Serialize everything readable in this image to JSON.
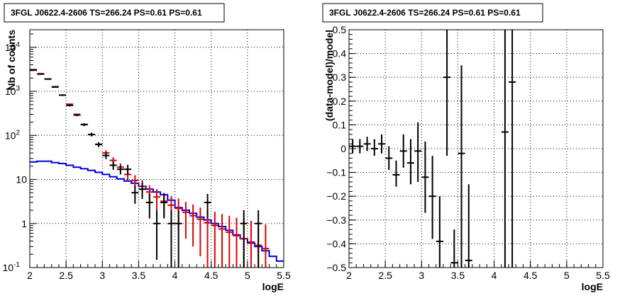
{
  "chart_data": [
    {
      "type": "scatter",
      "title": "3FGL J0622.4-2606 TS=266.24 PS=0.61 PS=0.61",
      "xlabel": "logE",
      "ylabel": "Nb of counts",
      "yscale": "log",
      "xlim": [
        2,
        5.5
      ],
      "ylim": [
        0.1,
        25000
      ],
      "grid": true,
      "x_ticks": [
        "2",
        "2.5",
        "3",
        "3.5",
        "4",
        "4.5",
        "5",
        "5.5"
      ],
      "y_ticks": [
        {
          "value": 0.1,
          "base": "10",
          "exp": "-1"
        },
        {
          "value": 1,
          "base": "1",
          "exp": ""
        },
        {
          "value": 10,
          "base": "10",
          "exp": ""
        },
        {
          "value": 100,
          "base": "10",
          "exp": "2"
        },
        {
          "value": 1000,
          "base": "10",
          "exp": "3"
        },
        {
          "value": 10000,
          "base": "10",
          "exp": "4"
        }
      ],
      "series": [
        {
          "color": "#000000",
          "style": "errorbar",
          "points": [
            {
              "x": 2.05,
              "y": 3100,
              "lo": 3000,
              "hi": 3200
            },
            {
              "x": 2.15,
              "y": 2500,
              "lo": 2420,
              "hi": 2580
            },
            {
              "x": 2.25,
              "y": 1900,
              "lo": 1840,
              "hi": 1960
            },
            {
              "x": 2.35,
              "y": 1250,
              "lo": 1200,
              "hi": 1300
            },
            {
              "x": 2.45,
              "y": 820,
              "lo": 790,
              "hi": 850
            },
            {
              "x": 2.55,
              "y": 480,
              "lo": 455,
              "hi": 505
            },
            {
              "x": 2.65,
              "y": 290,
              "lo": 272,
              "hi": 308
            },
            {
              "x": 2.75,
              "y": 175,
              "lo": 162,
              "hi": 188
            },
            {
              "x": 2.85,
              "y": 105,
              "lo": 95,
              "hi": 115
            },
            {
              "x": 2.95,
              "y": 62,
              "lo": 54,
              "hi": 70
            },
            {
              "x": 3.05,
              "y": 35,
              "lo": 29,
              "hi": 41
            },
            {
              "x": 3.15,
              "y": 21,
              "lo": 16.5,
              "hi": 25.5
            },
            {
              "x": 3.25,
              "y": 17,
              "lo": 13,
              "hi": 21
            },
            {
              "x": 3.35,
              "y": 17,
              "lo": 13,
              "hi": 21.5
            },
            {
              "x": 3.45,
              "y": 5,
              "lo": 2.8,
              "hi": 7.2
            },
            {
              "x": 3.55,
              "y": 6,
              "lo": 3.6,
              "hi": 8.5
            },
            {
              "x": 3.65,
              "y": 3,
              "lo": 1.3,
              "hi": 4.7
            },
            {
              "x": 3.75,
              "y": 1,
              "lo": 0.15,
              "hi": 2.0
            },
            {
              "x": 3.85,
              "y": 3,
              "lo": 1.3,
              "hi": 4.7
            },
            {
              "x": 3.95,
              "y": 1,
              "lo": 0.1,
              "hi": 2.0
            },
            {
              "x": 4.05,
              "y": 1,
              "lo": 0.1,
              "hi": 2.0
            },
            {
              "x": 4.45,
              "y": 3,
              "lo": 1.3,
              "hi": 4.7
            },
            {
              "x": 4.95,
              "y": 1,
              "lo": 0.1,
              "hi": 2.0
            },
            {
              "x": 5.15,
              "y": 1,
              "lo": 0.1,
              "hi": 2.0
            }
          ]
        },
        {
          "color": "#dd0000",
          "style": "errorbar",
          "points": [
            {
              "x": 2.05,
              "y": 3000
            },
            {
              "x": 2.15,
              "y": 2450
            },
            {
              "x": 2.25,
              "y": 1900
            },
            {
              "x": 2.35,
              "y": 1280
            },
            {
              "x": 2.45,
              "y": 820
            },
            {
              "x": 2.55,
              "y": 510
            },
            {
              "x": 2.65,
              "y": 300
            },
            {
              "x": 2.75,
              "y": 178
            },
            {
              "x": 2.85,
              "y": 105
            },
            {
              "x": 2.95,
              "y": 63
            },
            {
              "x": 3.05,
              "y": 40,
              "lo": 34,
              "hi": 46
            },
            {
              "x": 3.15,
              "y": 27,
              "lo": 22,
              "hi": 32
            },
            {
              "x": 3.25,
              "y": 19,
              "lo": 15,
              "hi": 23
            },
            {
              "x": 3.35,
              "y": 13,
              "lo": 9.5,
              "hi": 16.5
            },
            {
              "x": 3.45,
              "y": 9.5,
              "lo": 6.5,
              "hi": 12.5
            },
            {
              "x": 3.55,
              "y": 7,
              "lo": 4.4,
              "hi": 9.6
            },
            {
              "x": 3.65,
              "y": 5.2,
              "lo": 3.0,
              "hi": 7.4
            },
            {
              "x": 3.75,
              "y": 4,
              "lo": 2.0,
              "hi": 6.0
            },
            {
              "x": 3.85,
              "y": 3.2,
              "lo": 1.4,
              "hi": 5.0
            },
            {
              "x": 3.95,
              "y": 2.6,
              "lo": 1.0,
              "hi": 4.2
            },
            {
              "x": 4.05,
              "y": 2.2,
              "lo": 0.7,
              "hi": 3.7
            },
            {
              "x": 4.15,
              "y": 1.8,
              "lo": 0.45,
              "hi": 3.1
            },
            {
              "x": 4.25,
              "y": 1.5,
              "lo": 0.3,
              "hi": 2.7
            },
            {
              "x": 4.35,
              "y": 1.25,
              "lo": 0.18,
              "hi": 2.3
            },
            {
              "x": 4.45,
              "y": 1.05,
              "lo": 0.1,
              "hi": 2.05
            },
            {
              "x": 4.55,
              "y": 0.9,
              "lo": 0.1,
              "hi": 1.85
            },
            {
              "x": 4.65,
              "y": 0.75,
              "lo": 0.1,
              "hi": 1.65
            },
            {
              "x": 4.75,
              "y": 0.63,
              "lo": 0.1,
              "hi": 1.5
            },
            {
              "x": 4.85,
              "y": 0.53,
              "lo": 0.1,
              "hi": 1.35
            },
            {
              "x": 4.95,
              "y": 0.45,
              "lo": 0.1,
              "hi": 1.25
            },
            {
              "x": 5.05,
              "y": 0.38,
              "lo": 0.1,
              "hi": 1.15
            },
            {
              "x": 5.15,
              "y": 0.32,
              "lo": 0.1,
              "hi": 1.05
            },
            {
              "x": 5.25,
              "y": 0.27,
              "lo": 0.1,
              "hi": 0.95
            }
          ]
        },
        {
          "color": "#0000dd",
          "style": "step",
          "edges": [
            2.0,
            2.1,
            2.2,
            2.3,
            2.4,
            2.5,
            2.6,
            2.7,
            2.8,
            2.9,
            3.0,
            3.1,
            3.2,
            3.3,
            3.4,
            3.5,
            3.6,
            3.7,
            3.8,
            3.9,
            4.0,
            4.1,
            4.2,
            4.3,
            4.4,
            4.5,
            4.6,
            4.7,
            4.8,
            4.9,
            5.0,
            5.1,
            5.2,
            5.3,
            5.4,
            5.5
          ],
          "values": [
            25,
            26,
            26,
            24,
            23,
            21,
            19,
            17.5,
            16,
            14.5,
            13,
            11.5,
            10.3,
            9.2,
            8.2,
            7,
            6,
            5.2,
            4.5,
            3.4,
            2.3,
            2.0,
            1.7,
            1.4,
            1.2,
            1.0,
            0.85,
            0.7,
            0.55,
            0.45,
            0.36,
            0.3,
            0.24,
            0.18,
            0.14
          ]
        }
      ]
    },
    {
      "type": "scatter",
      "title": "3FGL J0622.4-2606 TS=266.24 PS=0.61 PS=0.61",
      "xlabel": "logE",
      "ylabel": "(data-model)/model",
      "xlim": [
        2,
        5.5
      ],
      "ylim": [
        -0.5,
        0.5
      ],
      "grid": true,
      "x_ticks": [
        "2",
        "2.5",
        "3",
        "3.5",
        "4",
        "4.5",
        "5",
        "5.5"
      ],
      "y_ticks": [
        "−0.5",
        "−0.4",
        "−0.3",
        "−0.2",
        "−0.1",
        "0",
        "0.1",
        "0.2",
        "0.3",
        "0.4",
        "0.5"
      ],
      "series": [
        {
          "color": "#000000",
          "style": "errorbar",
          "points": [
            {
              "x": 2.05,
              "y": 0.01,
              "lo": -0.02,
              "hi": 0.04
            },
            {
              "x": 2.15,
              "y": 0.01,
              "lo": -0.02,
              "hi": 0.04
            },
            {
              "x": 2.25,
              "y": 0.02,
              "lo": -0.01,
              "hi": 0.05
            },
            {
              "x": 2.35,
              "y": 0.0,
              "lo": -0.03,
              "hi": 0.04
            },
            {
              "x": 2.45,
              "y": 0.02,
              "lo": -0.02,
              "hi": 0.06
            },
            {
              "x": 2.55,
              "y": -0.04,
              "lo": -0.09,
              "hi": 0.01
            },
            {
              "x": 2.65,
              "y": -0.11,
              "lo": -0.16,
              "hi": -0.05
            },
            {
              "x": 2.75,
              "y": -0.01,
              "lo": -0.08,
              "hi": 0.06
            },
            {
              "x": 2.85,
              "y": -0.06,
              "lo": -0.15,
              "hi": 0.04
            },
            {
              "x": 2.95,
              "y": -0.01,
              "lo": -0.14,
              "hi": 0.11
            },
            {
              "x": 3.05,
              "y": -0.12,
              "lo": -0.27,
              "hi": 0.03
            },
            {
              "x": 3.15,
              "y": -0.2,
              "lo": -0.38,
              "hi": -0.03
            },
            {
              "x": 3.25,
              "y": -0.39,
              "lo": -0.5,
              "hi": -0.2
            },
            {
              "x": 3.35,
              "y": 0.3,
              "lo": -0.03,
              "hi": 0.5
            },
            {
              "x": 3.45,
              "y": -0.48,
              "lo": -0.5,
              "hi": -0.34
            },
            {
              "x": 3.55,
              "y": -0.02,
              "lo": -0.5,
              "hi": 0.35
            },
            {
              "x": 3.65,
              "y": -0.47,
              "lo": -0.5,
              "hi": -0.15
            },
            {
              "x": 4.15,
              "y": 0.07,
              "lo": -0.5,
              "hi": 0.5
            },
            {
              "x": 4.25,
              "y": 0.28,
              "lo": -0.5,
              "hi": 0.5
            }
          ]
        }
      ]
    }
  ]
}
